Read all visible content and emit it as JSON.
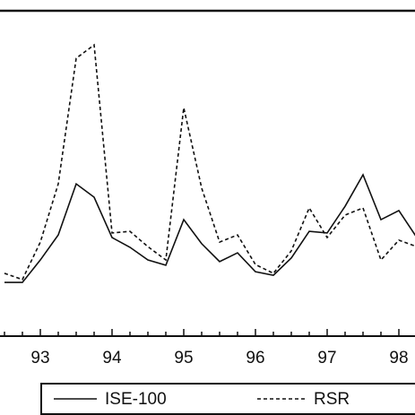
{
  "chart_data": {
    "type": "line",
    "categories": [
      null,
      null,
      "93",
      null,
      null,
      null,
      "94",
      null,
      null,
      null,
      "95",
      null,
      null,
      null,
      "96",
      null,
      null,
      null,
      "97",
      null,
      null,
      null,
      "98",
      null
    ],
    "ylim": [
      0,
      100
    ],
    "series": [
      {
        "name": "ISE-100",
        "color": "#111111",
        "line_style": "solid",
        "values": [
          16.5,
          16.5,
          23.4,
          31.1,
          46.8,
          42.7,
          30.3,
          27.3,
          23.4,
          21.8,
          35.8,
          28.4,
          22.9,
          25.6,
          19.8,
          18.7,
          24.0,
          32.2,
          31.7,
          39.9,
          49.6,
          35.8,
          38.6,
          30.3
        ]
      },
      {
        "name": "RSR",
        "color": "#111111",
        "line_style": "dashed",
        "values": [
          19.3,
          17.4,
          28.9,
          46.8,
          85.4,
          89.5,
          31.7,
          32.2,
          27.5,
          23.4,
          70.2,
          45.5,
          28.9,
          31.1,
          22.0,
          19.3,
          26.2,
          39.4,
          30.3,
          37.2,
          39.4,
          23.4,
          29.5,
          27.5
        ]
      }
    ]
  }
}
